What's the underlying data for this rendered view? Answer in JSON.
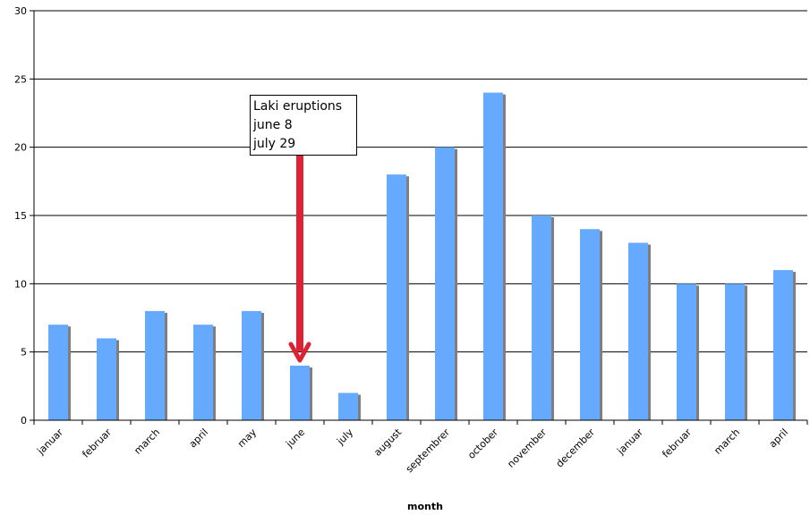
{
  "chart_data": {
    "type": "bar",
    "title": "",
    "xlabel": "month",
    "ylabel": "",
    "ylim": [
      0,
      30
    ],
    "yticks": [
      0,
      5,
      10,
      15,
      20,
      25,
      30
    ],
    "grid": true,
    "legend": "none",
    "categories": [
      "januar",
      "februar",
      "march",
      "april",
      "may",
      "june",
      "july",
      "august",
      "septembrer",
      "october",
      "november",
      "december",
      "januar",
      "februar",
      "march",
      "april"
    ],
    "values": [
      7,
      6,
      8,
      7,
      8,
      4,
      2,
      18,
      20,
      24,
      15,
      14,
      13,
      10,
      10,
      11
    ],
    "colors": {
      "bar": "#66aaff",
      "bar_shadow": "#7f7f7f",
      "arrow": "#dd2233",
      "grid": "#000000"
    },
    "annotation": {
      "lines": [
        "Laki eruptions",
        "june 8",
        "july 29"
      ],
      "arrow_target_category": "june"
    }
  }
}
